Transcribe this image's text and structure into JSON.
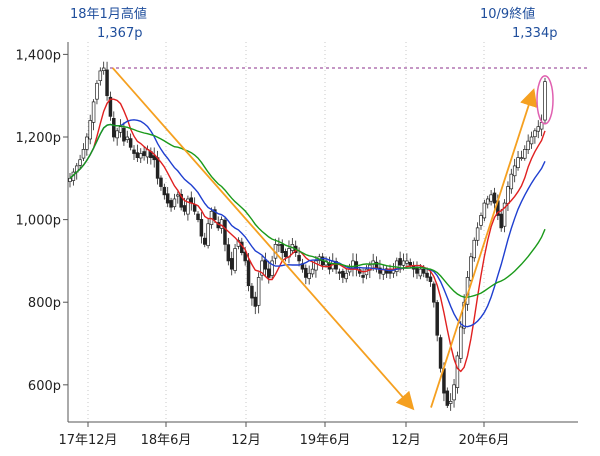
{
  "chart_data": {
    "type": "candlestick",
    "x_ticks": [
      "17年12月",
      "18年6月",
      "12月",
      "19年6月",
      "12月",
      "20年6月"
    ],
    "y_ticks": [
      "1,400p",
      "1,200p",
      "1,000p",
      "800p",
      "600p"
    ],
    "ylim": [
      510,
      1430
    ],
    "grid": "vertical-dotted",
    "annotations": [
      {
        "label": "18年1月高値",
        "value_text": "1,367p",
        "value": 1367
      },
      {
        "label": "10/9終値",
        "value_text": "1,334p",
        "value": 1334
      }
    ],
    "reference_line": {
      "value": 1367,
      "style": "dashed",
      "color": "#8b2f8b"
    },
    "trend_arrows": [
      {
        "from": [
          0.09,
          1367
        ],
        "to": [
          0.72,
          545
        ]
      },
      {
        "from": [
          0.76,
          545
        ],
        "to": [
          0.975,
          1310
        ]
      }
    ],
    "moving_average_colors": [
      "#e02020",
      "#1f3fd0",
      "#1a9a1a"
    ],
    "colors": {
      "candles": "#222222",
      "arrows": "#f5a020",
      "highlight": "#e060b0",
      "grid": "#c8c8c8"
    },
    "close_series": [
      1100,
      1115,
      1130,
      1145,
      1170,
      1200,
      1240,
      1285,
      1330,
      1360,
      1367,
      1300,
      1250,
      1200,
      1215,
      1225,
      1190,
      1200,
      1175,
      1160,
      1150,
      1160,
      1155,
      1170,
      1150,
      1145,
      1100,
      1080,
      1060,
      1040,
      1030,
      1050,
      1060,
      1030,
      1020,
      1050,
      1040,
      1020,
      1000,
      960,
      940,
      990,
      1020,
      1000,
      980,
      1000,
      940,
      900,
      880,
      930,
      950,
      920,
      900,
      840,
      810,
      790,
      860,
      900,
      880,
      860,
      900,
      940,
      940,
      920,
      910,
      930,
      940,
      920,
      900,
      880,
      860,
      870,
      880,
      900,
      910,
      890,
      900,
      880,
      900,
      880,
      870,
      860,
      870,
      880,
      900,
      880,
      870,
      860,
      880,
      890,
      900,
      880,
      870,
      880,
      870,
      870,
      880,
      900,
      890,
      900,
      900,
      890,
      880,
      870,
      880,
      870,
      860,
      850,
      800,
      720,
      640,
      580,
      550,
      560,
      600,
      670,
      740,
      800,
      860,
      910,
      950,
      980,
      1010,
      1040,
      1050,
      1060,
      1040,
      1010,
      980,
      1040,
      1080,
      1110,
      1130,
      1150,
      1150,
      1170,
      1190,
      1200,
      1215,
      1225,
      1235,
      1334
    ]
  }
}
